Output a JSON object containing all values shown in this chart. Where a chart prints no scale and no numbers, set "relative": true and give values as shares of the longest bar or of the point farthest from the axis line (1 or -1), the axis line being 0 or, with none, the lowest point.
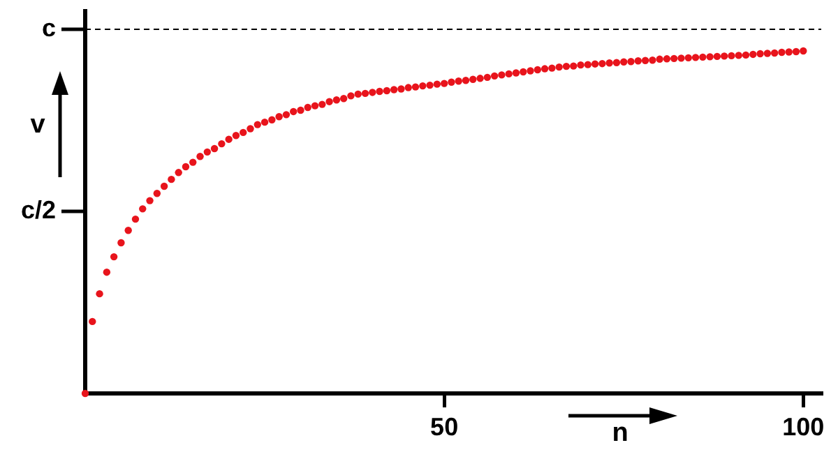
{
  "chart_data": {
    "type": "scatter",
    "xlabel": "n",
    "ylabel": "v",
    "relative": true,
    "x": [
      0,
      1,
      2,
      3,
      4,
      5,
      6,
      7,
      8,
      9,
      10,
      11,
      12,
      13,
      14,
      15,
      16,
      17,
      18,
      19,
      20,
      21,
      22,
      23,
      24,
      25,
      26,
      27,
      28,
      29,
      30,
      31,
      32,
      33,
      34,
      35,
      36,
      37,
      38,
      39,
      40,
      41,
      42,
      43,
      44,
      45,
      46,
      47,
      48,
      49,
      50,
      51,
      52,
      53,
      54,
      55,
      56,
      57,
      58,
      59,
      60,
      61,
      62,
      63,
      64,
      65,
      66,
      67,
      68,
      69,
      70,
      71,
      72,
      73,
      74,
      75,
      76,
      77,
      78,
      79,
      80,
      81,
      82,
      83,
      84,
      85,
      86,
      87,
      88,
      89,
      90,
      91,
      92,
      93,
      94,
      95,
      96,
      97,
      98,
      99,
      100
    ],
    "series": [
      {
        "color": "#e8141c",
        "values": [
          0,
          0.21,
          0.291,
          0.354,
          0.399,
          0.44,
          0.476,
          0.509,
          0.539,
          0.563,
          0.584,
          0.605,
          0.625,
          0.645,
          0.662,
          0.675,
          0.692,
          0.705,
          0.715,
          0.729,
          0.742,
          0.753,
          0.762,
          0.773,
          0.785,
          0.792,
          0.799,
          0.808,
          0.814,
          0.823,
          0.827,
          0.835,
          0.84,
          0.844,
          0.852,
          0.857,
          0.861,
          0.869,
          0.874,
          0.876,
          0.879,
          0.882,
          0.884,
          0.887,
          0.889,
          0.893,
          0.895,
          0.898,
          0.9,
          0.903,
          0.905,
          0.909,
          0.912,
          0.914,
          0.917,
          0.92,
          0.923,
          0.927,
          0.93,
          0.933,
          0.936,
          0.939,
          0.942,
          0.945,
          0.948,
          0.95,
          0.953,
          0.955,
          0.956,
          0.959,
          0.96,
          0.962,
          0.963,
          0.965,
          0.966,
          0.968,
          0.969,
          0.971,
          0.972,
          0.973,
          0.976,
          0.977,
          0.978,
          0.979,
          0.98,
          0.981,
          0.982,
          0.983,
          0.984,
          0.985,
          0.986,
          0.987,
          0.988,
          0.99,
          0.992,
          0.993,
          0.994,
          0.996,
          0.997,
          0.998,
          1
        ]
      }
    ],
    "xlim": [
      0,
      102.5
    ],
    "xticks": [
      50,
      100
    ],
    "ref_lines": [
      {
        "axis": "y",
        "value": 1.063,
        "label": "c",
        "color": "#000000",
        "line_style": "dashed"
      }
    ],
    "annotations": [
      "c/2"
    ],
    "grid": false,
    "legend": false,
    "marker": "circle"
  }
}
